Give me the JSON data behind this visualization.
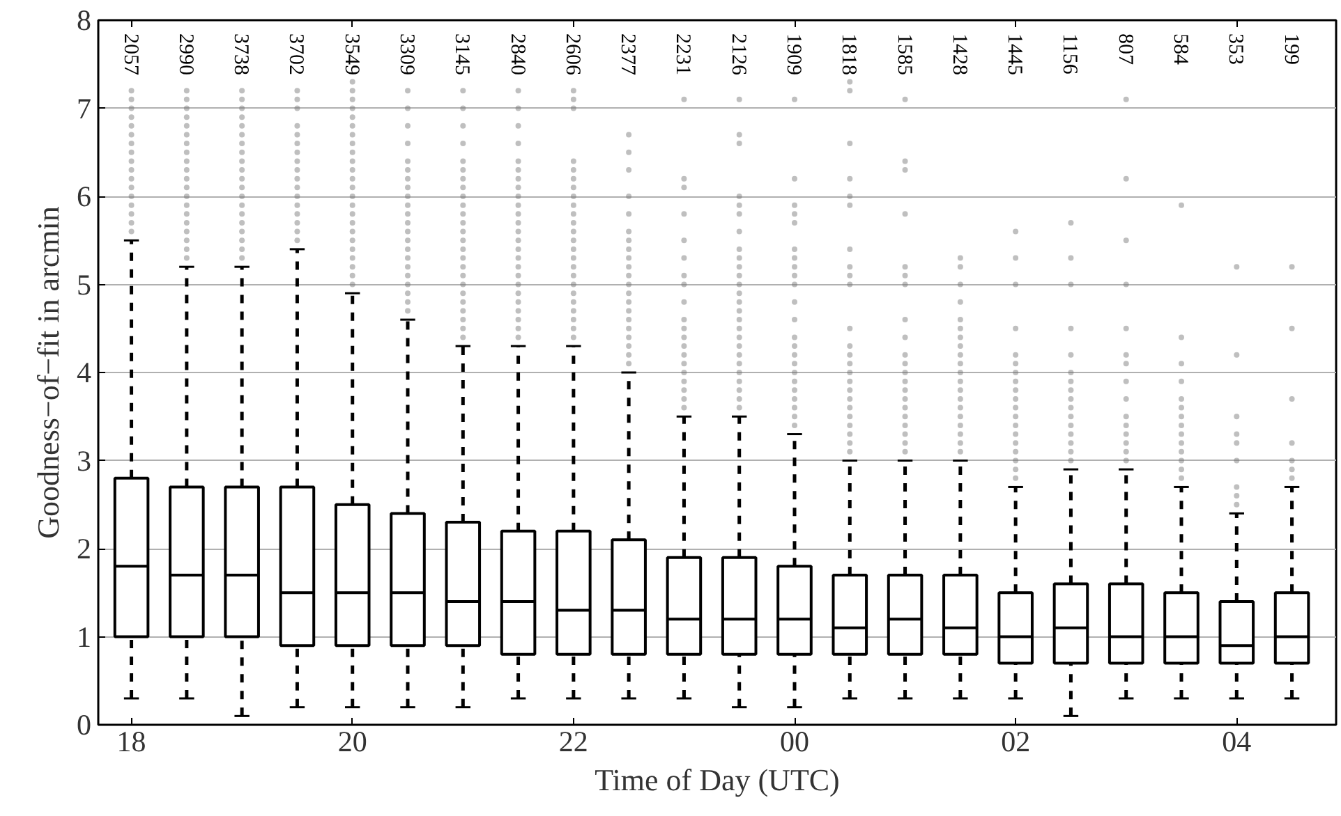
{
  "chart_data": {
    "type": "box",
    "xlabel": "Time of Day (UTC)",
    "ylabel": "Goodness−of−fit in arcmin",
    "x": [
      "2000-01-01T18:00",
      "2000-01-01T18:30",
      "2000-01-01T19:00",
      "2000-01-01T19:30",
      "2000-01-01T20:00",
      "2000-01-01T20:30",
      "2000-01-01T21:00",
      "2000-01-01T21:30",
      "2000-01-01T22:00",
      "2000-01-01T22:30",
      "2000-01-01T23:00",
      "2000-01-01T23:30",
      "2000-01-02T00:00",
      "2000-01-02T00:30",
      "2000-01-02T01:00",
      "2000-01-02T01:30",
      "2000-01-02T02:00",
      "2000-01-02T02:30",
      "2000-01-02T03:00",
      "2000-01-02T03:30",
      "2000-01-02T04:00",
      "2000-01-02T04:30"
    ],
    "xlim": [
      "2000-01-01T17:42",
      "2000-01-02T04:54"
    ],
    "xticks": [
      {
        "value": "2000-01-01T18:00",
        "label": "18"
      },
      {
        "value": "2000-01-01T20:00",
        "label": "20"
      },
      {
        "value": "2000-01-01T22:00",
        "label": "22"
      },
      {
        "value": "2000-01-02T00:00",
        "label": "00"
      },
      {
        "value": "2000-01-02T02:00",
        "label": "02"
      },
      {
        "value": "2000-01-02T04:00",
        "label": "04"
      }
    ],
    "ylim": [
      0,
      8
    ],
    "yticks": [
      0,
      1,
      2,
      3,
      4,
      5,
      6,
      7,
      8
    ],
    "grid": "y",
    "color": "#000000",
    "boxes": [
      {
        "low": 0.3,
        "q1": 1.0,
        "median": 1.8,
        "q3": 2.8,
        "high": 5.5,
        "outliers": [
          5.6,
          5.7,
          5.8,
          5.9,
          6.0,
          6.1,
          6.2,
          6.3,
          6.4,
          6.5,
          6.6,
          6.7,
          6.8,
          6.9,
          7.0,
          7.1,
          7.2
        ]
      },
      {
        "low": 0.3,
        "q1": 1.0,
        "median": 1.7,
        "q3": 2.7,
        "high": 5.2,
        "outliers": [
          5.3,
          5.4,
          5.5,
          5.6,
          5.7,
          5.8,
          5.9,
          6.0,
          6.1,
          6.2,
          6.3,
          6.4,
          6.5,
          6.6,
          6.7,
          6.8,
          6.9,
          7.0,
          7.1,
          7.2
        ]
      },
      {
        "low": 0.1,
        "q1": 1.0,
        "median": 1.7,
        "q3": 2.7,
        "high": 5.2,
        "outliers": [
          5.3,
          5.4,
          5.5,
          5.6,
          5.7,
          5.8,
          5.9,
          6.0,
          6.1,
          6.2,
          6.3,
          6.4,
          6.5,
          6.6,
          6.7,
          6.8,
          6.9,
          7.0,
          7.1,
          7.2
        ]
      },
      {
        "low": 0.2,
        "q1": 0.9,
        "median": 1.5,
        "q3": 2.7,
        "high": 5.4,
        "outliers": [
          5.5,
          5.6,
          5.7,
          5.8,
          5.9,
          6.0,
          6.1,
          6.2,
          6.3,
          6.4,
          6.5,
          6.6,
          6.7,
          6.8,
          7.0,
          7.1,
          7.2
        ]
      },
      {
        "low": 0.2,
        "q1": 0.9,
        "median": 1.5,
        "q3": 2.5,
        "high": 4.9,
        "outliers": [
          5.0,
          5.1,
          5.2,
          5.3,
          5.4,
          5.5,
          5.6,
          5.7,
          5.8,
          5.9,
          6.0,
          6.1,
          6.2,
          6.3,
          6.4,
          6.5,
          6.6,
          6.7,
          6.8,
          6.9,
          7.0,
          7.1,
          7.2,
          7.3
        ]
      },
      {
        "low": 0.2,
        "q1": 0.9,
        "median": 1.5,
        "q3": 2.4,
        "high": 4.6,
        "outliers": [
          4.7,
          4.8,
          4.9,
          5.0,
          5.1,
          5.2,
          5.3,
          5.4,
          5.5,
          5.6,
          5.7,
          5.8,
          5.9,
          6.0,
          6.1,
          6.2,
          6.3,
          6.4,
          6.6,
          6.8,
          7.0,
          7.2
        ]
      },
      {
        "low": 0.2,
        "q1": 0.9,
        "median": 1.4,
        "q3": 2.3,
        "high": 4.3,
        "outliers": [
          4.4,
          4.5,
          4.6,
          4.7,
          4.8,
          4.9,
          5.0,
          5.1,
          5.2,
          5.3,
          5.4,
          5.5,
          5.6,
          5.7,
          5.8,
          5.9,
          6.0,
          6.1,
          6.2,
          6.3,
          6.4,
          6.6,
          6.8,
          7.0,
          7.2
        ]
      },
      {
        "low": 0.3,
        "q1": 0.8,
        "median": 1.4,
        "q3": 2.2,
        "high": 4.3,
        "outliers": [
          4.4,
          4.5,
          4.6,
          4.7,
          4.8,
          4.9,
          5.0,
          5.1,
          5.2,
          5.3,
          5.4,
          5.5,
          5.6,
          5.7,
          5.8,
          5.9,
          6.0,
          6.1,
          6.2,
          6.3,
          6.4,
          6.6,
          6.8,
          7.0,
          7.2
        ]
      },
      {
        "low": 0.3,
        "q1": 0.8,
        "median": 1.3,
        "q3": 2.2,
        "high": 4.3,
        "outliers": [
          4.4,
          4.5,
          4.6,
          4.7,
          4.8,
          4.9,
          5.0,
          5.1,
          5.2,
          5.3,
          5.4,
          5.5,
          5.6,
          5.7,
          5.8,
          5.9,
          6.0,
          6.1,
          6.2,
          6.3,
          6.4,
          7.0,
          7.1,
          7.2
        ]
      },
      {
        "low": 0.3,
        "q1": 0.8,
        "median": 1.3,
        "q3": 2.1,
        "high": 4.0,
        "outliers": [
          4.1,
          4.2,
          4.3,
          4.4,
          4.5,
          4.6,
          4.7,
          4.8,
          4.9,
          5.0,
          5.1,
          5.2,
          5.3,
          5.4,
          5.5,
          5.6,
          5.8,
          6.0,
          6.3,
          6.5,
          6.7
        ]
      },
      {
        "low": 0.3,
        "q1": 0.8,
        "median": 1.2,
        "q3": 1.9,
        "high": 3.5,
        "outliers": [
          3.6,
          3.7,
          3.8,
          3.9,
          4.0,
          4.1,
          4.2,
          4.3,
          4.4,
          4.5,
          4.6,
          4.8,
          5.0,
          5.1,
          5.3,
          5.5,
          5.8,
          6.1,
          6.2,
          7.1
        ]
      },
      {
        "low": 0.2,
        "q1": 0.8,
        "median": 1.2,
        "q3": 1.9,
        "high": 3.5,
        "outliers": [
          3.6,
          3.7,
          3.8,
          3.9,
          4.0,
          4.1,
          4.2,
          4.3,
          4.4,
          4.5,
          4.6,
          4.7,
          4.8,
          4.9,
          5.0,
          5.1,
          5.2,
          5.3,
          5.4,
          5.6,
          5.8,
          5.9,
          6.0,
          6.6,
          6.7,
          7.1
        ]
      },
      {
        "low": 0.2,
        "q1": 0.8,
        "median": 1.2,
        "q3": 1.8,
        "high": 3.3,
        "outliers": [
          3.4,
          3.5,
          3.6,
          3.7,
          3.8,
          3.9,
          4.0,
          4.1,
          4.2,
          4.3,
          4.4,
          4.6,
          4.8,
          5.0,
          5.1,
          5.2,
          5.3,
          5.4,
          5.7,
          5.8,
          5.9,
          6.2,
          7.1
        ]
      },
      {
        "low": 0.3,
        "q1": 0.8,
        "median": 1.1,
        "q3": 1.7,
        "high": 3.0,
        "outliers": [
          3.1,
          3.2,
          3.3,
          3.4,
          3.5,
          3.6,
          3.7,
          3.8,
          3.9,
          4.0,
          4.1,
          4.2,
          4.3,
          4.5,
          5.0,
          5.1,
          5.2,
          5.4,
          5.9,
          6.0,
          6.2,
          6.6,
          7.2,
          7.3
        ]
      },
      {
        "low": 0.3,
        "q1": 0.8,
        "median": 1.2,
        "q3": 1.7,
        "high": 3.0,
        "outliers": [
          3.1,
          3.2,
          3.3,
          3.4,
          3.5,
          3.6,
          3.7,
          3.8,
          3.9,
          4.0,
          4.1,
          4.2,
          4.4,
          4.6,
          5.0,
          5.1,
          5.2,
          5.8,
          6.3,
          6.4,
          7.1
        ]
      },
      {
        "low": 0.3,
        "q1": 0.8,
        "median": 1.1,
        "q3": 1.7,
        "high": 3.0,
        "outliers": [
          3.1,
          3.2,
          3.3,
          3.4,
          3.5,
          3.6,
          3.7,
          3.8,
          3.9,
          4.0,
          4.1,
          4.2,
          4.3,
          4.4,
          4.5,
          4.6,
          4.8,
          5.0,
          5.2,
          5.3
        ]
      },
      {
        "low": 0.3,
        "q1": 0.7,
        "median": 1.0,
        "q3": 1.5,
        "high": 2.7,
        "outliers": [
          2.8,
          2.9,
          3.0,
          3.1,
          3.2,
          3.3,
          3.4,
          3.5,
          3.6,
          3.7,
          3.8,
          3.9,
          4.0,
          4.1,
          4.2,
          4.5,
          5.0,
          5.3,
          5.6
        ]
      },
      {
        "low": 0.1,
        "q1": 0.7,
        "median": 1.1,
        "q3": 1.6,
        "high": 2.9,
        "outliers": [
          3.0,
          3.1,
          3.2,
          3.3,
          3.4,
          3.5,
          3.6,
          3.7,
          3.8,
          3.9,
          4.0,
          4.2,
          4.5,
          5.0,
          5.3,
          5.7
        ]
      },
      {
        "low": 0.3,
        "q1": 0.7,
        "median": 1.0,
        "q3": 1.6,
        "high": 2.9,
        "outliers": [
          3.0,
          3.1,
          3.2,
          3.3,
          3.4,
          3.5,
          3.7,
          3.9,
          4.1,
          4.2,
          4.5,
          5.0,
          5.5,
          6.2,
          7.1
        ]
      },
      {
        "low": 0.3,
        "q1": 0.7,
        "median": 1.0,
        "q3": 1.5,
        "high": 2.7,
        "outliers": [
          2.8,
          2.9,
          3.0,
          3.1,
          3.2,
          3.3,
          3.4,
          3.5,
          3.6,
          3.7,
          3.9,
          4.1,
          4.4,
          5.9
        ]
      },
      {
        "low": 0.3,
        "q1": 0.7,
        "median": 0.9,
        "q3": 1.4,
        "high": 2.4,
        "outliers": [
          2.5,
          2.6,
          2.7,
          3.0,
          3.2,
          3.3,
          3.5,
          4.2,
          5.2
        ]
      },
      {
        "low": 0.3,
        "q1": 0.7,
        "median": 1.0,
        "q3": 1.5,
        "high": 2.7,
        "outliers": [
          2.8,
          2.9,
          3.0,
          3.2,
          3.7,
          4.5,
          5.2
        ]
      }
    ],
    "annotations": [
      "2057",
      "2990",
      "3738",
      "3702",
      "3549",
      "3309",
      "3145",
      "2840",
      "2606",
      "2377",
      "2231",
      "2126",
      "1909",
      "1818",
      "1585",
      "1428",
      "1445",
      "1156",
      "807",
      "584",
      "353",
      "199"
    ]
  }
}
